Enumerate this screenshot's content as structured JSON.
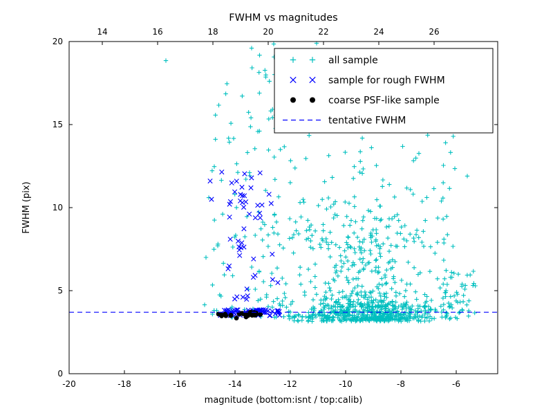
{
  "figure": {
    "title": "FWHM vs magnitudes",
    "xlabel": "magnitude (bottom:isnt / top:calib)",
    "ylabel": "FWHM (pix)"
  },
  "chart_data": {
    "type": "scatter",
    "title": "FWHM vs magnitudes",
    "xlabel": "magnitude (bottom:isnt / top:calib)",
    "ylabel": "FWHM (pix)",
    "xlim": [
      -20,
      -4.5
    ],
    "ylim": [
      0,
      20
    ],
    "x_ticks": [
      -20,
      -18,
      -16,
      -14,
      -12,
      -10,
      -8,
      -6
    ],
    "y_ticks": [
      0,
      5,
      10,
      15,
      20
    ],
    "top_axis": {
      "ticks": [
        14,
        16,
        18,
        20,
        22,
        24,
        26
      ],
      "offset": 32.8
    },
    "grid": false,
    "tentative_fwhm": 3.7,
    "legend": {
      "position": "upper right",
      "entries": [
        {
          "label": "all sample",
          "marker": "plus",
          "color": "#00bfbf"
        },
        {
          "label": "sample for rough FWHM",
          "marker": "x",
          "color": "#0000ff"
        },
        {
          "label": "coarse PSF-like sample",
          "marker": "dot",
          "color": "#000000"
        },
        {
          "label": "tentative FWHM",
          "marker": "dashed-line",
          "color": "#0000ff"
        }
      ]
    },
    "series": [
      {
        "name": "all sample",
        "marker": "plus",
        "color": "#00bfbf",
        "seed": 42,
        "clusters": [
          {
            "n": 480,
            "x": {
              "dist": "normal",
              "mean": -9.2,
              "sd": 1.35,
              "min": -12.45,
              "max": -5.5
            },
            "y": {
              "dist": "halfnormal",
              "base": 3.15,
              "sd": 0.55
            }
          },
          {
            "n": 300,
            "x": {
              "dist": "normal",
              "mean": -9.4,
              "sd": 1.3,
              "min": -12.45,
              "max": -5.6
            },
            "y": {
              "dist": "power",
              "min": 4.0,
              "max": 9.5,
              "exp": 1.8
            }
          },
          {
            "n": 175,
            "x": {
              "dist": "uniform",
              "min": -13.3,
              "max": -6.1
            },
            "y": {
              "dist": "power",
              "min": 7.5,
              "max": 19.9,
              "exp": 1.7
            }
          },
          {
            "n": 95,
            "x": {
              "dist": "uniform",
              "min": -14.85,
              "max": -12.35
            },
            "y": {
              "dist": "power",
              "min": 3.4,
              "max": 19.3,
              "exp": 2.3
            }
          },
          {
            "n": 45,
            "x": {
              "dist": "uniform",
              "min": -6.6,
              "max": -5.25
            },
            "y": {
              "dist": "uniform",
              "min": 3.2,
              "max": 6.3
            }
          }
        ],
        "points": [
          [
            -16.5,
            18.85
          ],
          [
            -13.4,
            19.6
          ],
          [
            -12.6,
            19.85
          ],
          [
            -11.05,
            19.9
          ],
          [
            -5.6,
            11.9
          ],
          [
            -6.05,
            12.35
          ],
          [
            -15.05,
            7.0
          ],
          [
            -15.1,
            4.15
          ],
          [
            -14.95,
            10.6
          ]
        ]
      },
      {
        "name": "sample for rough FWHM",
        "marker": "x",
        "color": "#0000ff",
        "seed": 7,
        "clusters": [
          {
            "n": 72,
            "x": {
              "dist": "uniform",
              "min": -14.55,
              "max": -12.35
            },
            "y": {
              "dist": "uniform",
              "min": 3.5,
              "max": 3.85
            }
          },
          {
            "n": 50,
            "x": {
              "dist": "normal",
              "mean": -13.55,
              "sd": 0.6,
              "min": -14.65,
              "max": -12.4
            },
            "y": {
              "dist": "power",
              "min": 4.2,
              "max": 12.4,
              "exp": 1.25
            }
          }
        ],
        "points": [
          [
            -14.9,
            11.6
          ],
          [
            -14.85,
            10.5
          ]
        ]
      },
      {
        "name": "coarse PSF-like sample",
        "marker": "dot",
        "color": "#000000",
        "seed": 3,
        "clusters": [
          {
            "n": 27,
            "x": {
              "dist": "uniform",
              "min": -14.6,
              "max": -13.05
            },
            "y": {
              "dist": "normal",
              "mean": 3.6,
              "sd": 0.07,
              "min": 3.42,
              "max": 3.78
            }
          }
        ],
        "points": [
          [
            -13.95,
            3.35
          ],
          [
            -13.6,
            3.42
          ]
        ]
      }
    ],
    "lines": [
      {
        "name": "tentative FWHM",
        "y": 3.7,
        "style": "dashed",
        "color": "#0000ff"
      }
    ]
  },
  "colors": {
    "all_sample": "#00bfbf",
    "rough_fwhm": "#0000ff",
    "psf_like": "#000000",
    "tentative_line": "#0000ff",
    "axes": "#000000",
    "background": "#ffffff"
  }
}
